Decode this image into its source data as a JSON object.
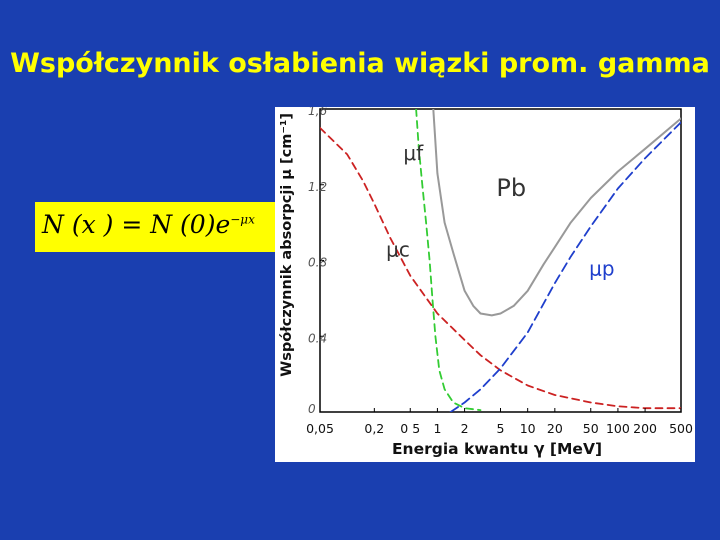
{
  "slide": {
    "title": "Współczynnik osłabienia wiązki prom. gamma",
    "formula": {
      "lhs": "N (x ) = N (0)e",
      "exponent": "−μx"
    }
  },
  "colors": {
    "background": "#1a3fb0",
    "title": "#ffff00",
    "formula_box": "#ffff00",
    "total_curve": "#999999",
    "photo_curve": "#33cc33",
    "compton_curve": "#cc2222",
    "pair_curve": "#1f3fcc"
  },
  "chart_data": {
    "type": "line",
    "x_scale": "log",
    "xlim": [
      0.05,
      500
    ],
    "ylim": [
      0,
      1.6
    ],
    "xlabel": "Energia kwantu  γ  [MeV]",
    "ylabel": "Współczynnik absorpcji  μ   [cm⁻¹]",
    "x_ticks": [
      {
        "value": 0.05,
        "label": "0,05"
      },
      {
        "value": 0.2,
        "label": "0,2"
      },
      {
        "value": 0.5,
        "label": "0 5"
      },
      {
        "value": 1,
        "label": "1"
      },
      {
        "value": 2,
        "label": "2"
      },
      {
        "value": 5,
        "label": "5"
      },
      {
        "value": 10,
        "label": "10"
      },
      {
        "value": 20,
        "label": "20"
      },
      {
        "value": 50,
        "label": "50"
      },
      {
        "value": 100,
        "label": "100"
      },
      {
        "value": 200,
        "label": "200"
      },
      {
        "value": 500,
        "label": "500"
      }
    ],
    "y_ticks": [
      {
        "value": 0,
        "label": "0"
      },
      {
        "value": 0.4,
        "label": "0.4"
      },
      {
        "value": 0.8,
        "label": "0.8"
      },
      {
        "value": 1.2,
        "label": "1.2"
      },
      {
        "value": 1.6,
        "label": "1,6"
      }
    ],
    "annotations": [
      {
        "text": "Pb",
        "x": 4.5,
        "y": 1.14,
        "color": "#333333",
        "size": 24
      },
      {
        "text": "μf",
        "x": 0.42,
        "y": 1.33,
        "color": "#333333",
        "size": 20
      },
      {
        "text": "μc",
        "x": 0.27,
        "y": 0.82,
        "color": "#333333",
        "size": 20
      },
      {
        "text": "μp",
        "x": 48,
        "y": 0.72,
        "color": "#1f3fcc",
        "size": 20
      }
    ],
    "series": [
      {
        "label": "total",
        "color": "#999999",
        "dash": "",
        "points": [
          [
            0.9,
            1.6
          ],
          [
            1.0,
            1.26
          ],
          [
            1.2,
            1.0
          ],
          [
            1.5,
            0.84
          ],
          [
            2.0,
            0.64
          ],
          [
            2.5,
            0.56
          ],
          [
            3.0,
            0.52
          ],
          [
            4.0,
            0.51
          ],
          [
            5.0,
            0.52
          ],
          [
            7.0,
            0.56
          ],
          [
            10,
            0.64
          ],
          [
            15,
            0.78
          ],
          [
            20,
            0.87
          ],
          [
            30,
            1.0
          ],
          [
            50,
            1.13
          ],
          [
            100,
            1.27
          ],
          [
            200,
            1.39
          ],
          [
            500,
            1.55
          ]
        ]
      },
      {
        "label": "μf",
        "color": "#33cc33",
        "dash": "7,5",
        "points": [
          [
            0.58,
            1.6
          ],
          [
            0.62,
            1.4
          ],
          [
            0.68,
            1.2
          ],
          [
            0.75,
            1.0
          ],
          [
            0.82,
            0.8
          ],
          [
            0.88,
            0.6
          ],
          [
            0.95,
            0.4
          ],
          [
            1.05,
            0.22
          ],
          [
            1.2,
            0.12
          ],
          [
            1.5,
            0.05
          ],
          [
            2.0,
            0.02
          ],
          [
            3.0,
            0.01
          ]
        ]
      },
      {
        "label": "μc",
        "color": "#cc2222",
        "dash": "7,5",
        "points": [
          [
            0.05,
            1.5
          ],
          [
            0.1,
            1.36
          ],
          [
            0.15,
            1.22
          ],
          [
            0.2,
            1.1
          ],
          [
            0.3,
            0.92
          ],
          [
            0.5,
            0.72
          ],
          [
            1.0,
            0.52
          ],
          [
            2.0,
            0.38
          ],
          [
            3.0,
            0.3
          ],
          [
            5.0,
            0.22
          ],
          [
            10,
            0.14
          ],
          [
            20,
            0.09
          ],
          [
            50,
            0.05
          ],
          [
            100,
            0.03
          ],
          [
            200,
            0.02
          ],
          [
            500,
            0.02
          ]
        ]
      },
      {
        "label": "μp",
        "color": "#1f3fcc",
        "dash": "9,5",
        "points": [
          [
            1.4,
            0.0
          ],
          [
            2.0,
            0.05
          ],
          [
            3.0,
            0.12
          ],
          [
            5.0,
            0.23
          ],
          [
            10,
            0.42
          ],
          [
            20,
            0.68
          ],
          [
            30,
            0.82
          ],
          [
            50,
            0.98
          ],
          [
            100,
            1.18
          ],
          [
            200,
            1.34
          ],
          [
            500,
            1.53
          ]
        ]
      }
    ]
  }
}
